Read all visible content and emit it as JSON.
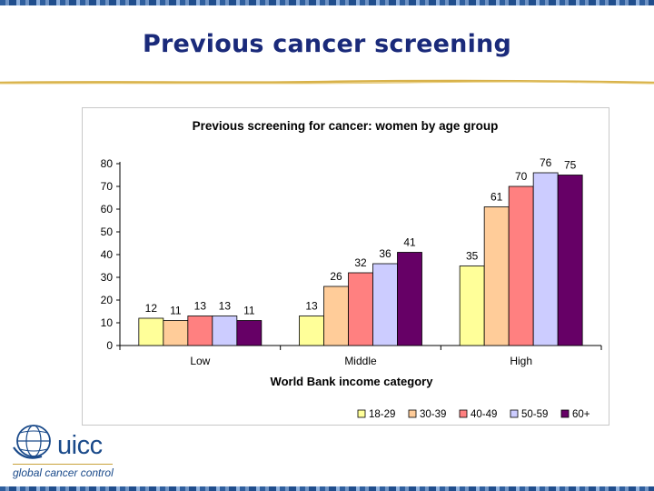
{
  "slide": {
    "title": "Previous cancer screening",
    "colors": {
      "title": "#1a2a7a",
      "rule": "#d8b24a",
      "border": "#2f5f9e"
    }
  },
  "logo": {
    "name": "uicc",
    "tagline": "global cancer control",
    "icon": "globe-icon"
  },
  "chart_data": {
    "type": "bar",
    "title": "Previous screening for cancer: women by age group",
    "xlabel": "World Bank income category",
    "ylabel": "",
    "categories": [
      "Low",
      "Middle",
      "High"
    ],
    "ylim": [
      0,
      80
    ],
    "yticks": [
      0,
      10,
      20,
      30,
      40,
      50,
      60,
      70,
      80
    ],
    "grid": false,
    "legend_position": "bottom-right",
    "series": [
      {
        "name": "18-29",
        "color": "#ffff99",
        "values": [
          12,
          13,
          35
        ]
      },
      {
        "name": "30-39",
        "color": "#ffcc99",
        "values": [
          11,
          26,
          61
        ]
      },
      {
        "name": "40-49",
        "color": "#ff8080",
        "values": [
          13,
          32,
          70
        ]
      },
      {
        "name": "50-59",
        "color": "#ccccff",
        "values": [
          13,
          36,
          76
        ]
      },
      {
        "name": "60+",
        "color": "#660066",
        "values": [
          11,
          41,
          75
        ]
      }
    ]
  }
}
